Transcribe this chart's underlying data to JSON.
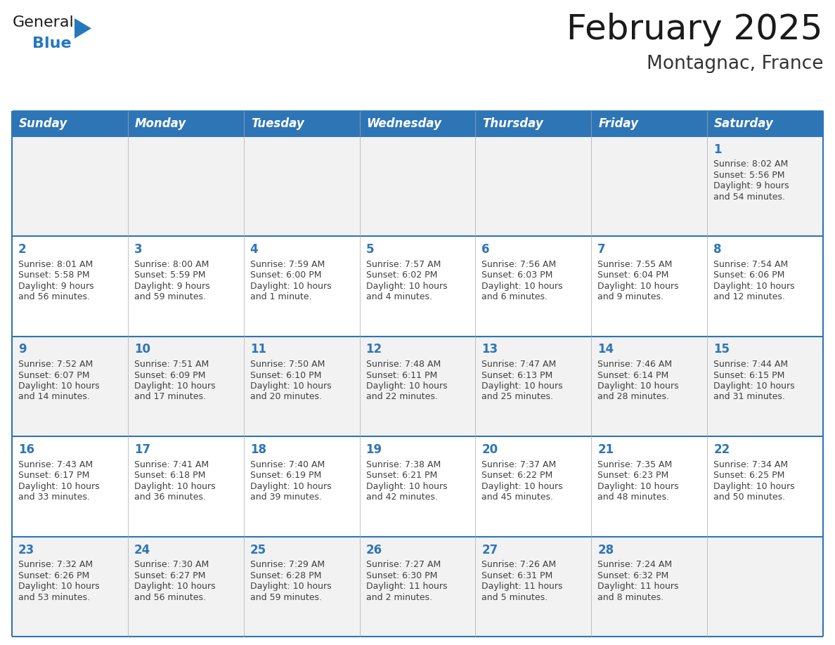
{
  "title": "February 2025",
  "subtitle": "Montagnac, France",
  "days_of_week": [
    "Sunday",
    "Monday",
    "Tuesday",
    "Wednesday",
    "Thursday",
    "Friday",
    "Saturday"
  ],
  "header_bg": "#2E75B6",
  "header_text_color": "#FFFFFF",
  "cell_bg_light": "#F2F2F2",
  "cell_bg_white": "#FFFFFF",
  "border_color": "#2E75B6",
  "title_color": "#1a1a1a",
  "subtitle_color": "#333333",
  "day_number_color": "#2E75B6",
  "cell_text_color": "#404040",
  "calendar_data": [
    [
      null,
      null,
      null,
      null,
      null,
      null,
      {
        "day": 1,
        "sunrise": "8:02 AM",
        "sunset": "5:56 PM",
        "daylight": "9 hours and 54 minutes"
      }
    ],
    [
      {
        "day": 2,
        "sunrise": "8:01 AM",
        "sunset": "5:58 PM",
        "daylight": "9 hours and 56 minutes"
      },
      {
        "day": 3,
        "sunrise": "8:00 AM",
        "sunset": "5:59 PM",
        "daylight": "9 hours and 59 minutes"
      },
      {
        "day": 4,
        "sunrise": "7:59 AM",
        "sunset": "6:00 PM",
        "daylight": "10 hours and 1 minute"
      },
      {
        "day": 5,
        "sunrise": "7:57 AM",
        "sunset": "6:02 PM",
        "daylight": "10 hours and 4 minutes"
      },
      {
        "day": 6,
        "sunrise": "7:56 AM",
        "sunset": "6:03 PM",
        "daylight": "10 hours and 6 minutes"
      },
      {
        "day": 7,
        "sunrise": "7:55 AM",
        "sunset": "6:04 PM",
        "daylight": "10 hours and 9 minutes"
      },
      {
        "day": 8,
        "sunrise": "7:54 AM",
        "sunset": "6:06 PM",
        "daylight": "10 hours and 12 minutes"
      }
    ],
    [
      {
        "day": 9,
        "sunrise": "7:52 AM",
        "sunset": "6:07 PM",
        "daylight": "10 hours and 14 minutes"
      },
      {
        "day": 10,
        "sunrise": "7:51 AM",
        "sunset": "6:09 PM",
        "daylight": "10 hours and 17 minutes"
      },
      {
        "day": 11,
        "sunrise": "7:50 AM",
        "sunset": "6:10 PM",
        "daylight": "10 hours and 20 minutes"
      },
      {
        "day": 12,
        "sunrise": "7:48 AM",
        "sunset": "6:11 PM",
        "daylight": "10 hours and 22 minutes"
      },
      {
        "day": 13,
        "sunrise": "7:47 AM",
        "sunset": "6:13 PM",
        "daylight": "10 hours and 25 minutes"
      },
      {
        "day": 14,
        "sunrise": "7:46 AM",
        "sunset": "6:14 PM",
        "daylight": "10 hours and 28 minutes"
      },
      {
        "day": 15,
        "sunrise": "7:44 AM",
        "sunset": "6:15 PM",
        "daylight": "10 hours and 31 minutes"
      }
    ],
    [
      {
        "day": 16,
        "sunrise": "7:43 AM",
        "sunset": "6:17 PM",
        "daylight": "10 hours and 33 minutes"
      },
      {
        "day": 17,
        "sunrise": "7:41 AM",
        "sunset": "6:18 PM",
        "daylight": "10 hours and 36 minutes"
      },
      {
        "day": 18,
        "sunrise": "7:40 AM",
        "sunset": "6:19 PM",
        "daylight": "10 hours and 39 minutes"
      },
      {
        "day": 19,
        "sunrise": "7:38 AM",
        "sunset": "6:21 PM",
        "daylight": "10 hours and 42 minutes"
      },
      {
        "day": 20,
        "sunrise": "7:37 AM",
        "sunset": "6:22 PM",
        "daylight": "10 hours and 45 minutes"
      },
      {
        "day": 21,
        "sunrise": "7:35 AM",
        "sunset": "6:23 PM",
        "daylight": "10 hours and 48 minutes"
      },
      {
        "day": 22,
        "sunrise": "7:34 AM",
        "sunset": "6:25 PM",
        "daylight": "10 hours and 50 minutes"
      }
    ],
    [
      {
        "day": 23,
        "sunrise": "7:32 AM",
        "sunset": "6:26 PM",
        "daylight": "10 hours and 53 minutes"
      },
      {
        "day": 24,
        "sunrise": "7:30 AM",
        "sunset": "6:27 PM",
        "daylight": "10 hours and 56 minutes"
      },
      {
        "day": 25,
        "sunrise": "7:29 AM",
        "sunset": "6:28 PM",
        "daylight": "10 hours and 59 minutes"
      },
      {
        "day": 26,
        "sunrise": "7:27 AM",
        "sunset": "6:30 PM",
        "daylight": "11 hours and 2 minutes"
      },
      {
        "day": 27,
        "sunrise": "7:26 AM",
        "sunset": "6:31 PM",
        "daylight": "11 hours and 5 minutes"
      },
      {
        "day": 28,
        "sunrise": "7:24 AM",
        "sunset": "6:32 PM",
        "daylight": "11 hours and 8 minutes"
      },
      null
    ]
  ],
  "row_bg_colors": [
    "#F2F2F2",
    "#FFFFFF",
    "#F2F2F2",
    "#FFFFFF",
    "#F2F2F2"
  ],
  "logo_text_general": "General",
  "logo_text_blue": "Blue",
  "logo_general_color": "#1a1a1a",
  "logo_blue_color": "#2479BE",
  "title_fontsize": 36,
  "subtitle_fontsize": 19,
  "header_fontsize": 12,
  "day_num_fontsize": 12,
  "cell_fontsize": 9
}
